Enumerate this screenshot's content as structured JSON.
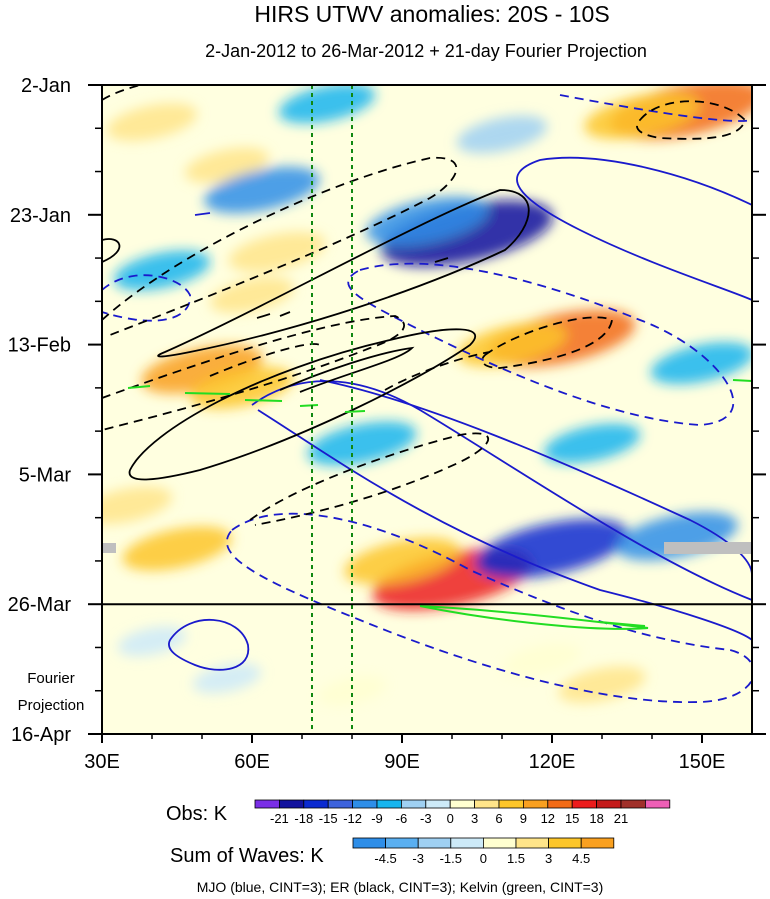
{
  "chart_data": {
    "type": "heatmap",
    "title": "HIRS UTWV anomalies: 20S - 10S",
    "subtitle": "2-Jan-2012 to 26-Mar-2012 + 21-day Fourier Projection",
    "xlabel": "",
    "ylabel": "",
    "x_ticks": [
      "30E",
      "60E",
      "90E",
      "120E",
      "150E"
    ],
    "x_tick_values": [
      30,
      60,
      90,
      120,
      150
    ],
    "xlim": [
      30,
      160
    ],
    "y_ticks": [
      "2-Jan",
      "23-Jan",
      "13-Feb",
      "5-Mar",
      "26-Mar",
      "16-Apr"
    ],
    "y_tick_days": [
      0,
      21,
      42,
      63,
      84,
      105
    ],
    "ylim_days": [
      0,
      105
    ],
    "observation_end_day": 84,
    "projection_label": [
      "Fourier",
      "Projection"
    ],
    "reference_longitudes": [
      72,
      80
    ],
    "obs_colorbar": {
      "label": "Obs: K",
      "levels": [
        "-21",
        "-18",
        "-15",
        "-12",
        "-9",
        "-6",
        "-3",
        "0",
        "3",
        "6",
        "9",
        "12",
        "15",
        "18",
        "21"
      ],
      "colors": [
        "#7a2ee6",
        "#12129e",
        "#0a2ad0",
        "#3d63dc",
        "#2e8ee8",
        "#16b5ee",
        "#9fd0f2",
        "#cdeaf8",
        "#ffffd0",
        "#ffe58a",
        "#fdc62a",
        "#f9a020",
        "#f26b16",
        "#ec1c1c",
        "#c41a1a",
        "#a0302a",
        "#ee5fb6"
      ]
    },
    "waves_colorbar": {
      "label": "Sum of Waves: K",
      "levels": [
        "-4.5",
        "-3",
        "-1.5",
        "0",
        "1.5",
        "3",
        "4.5"
      ],
      "colors": [
        "#2e8ee8",
        "#5aaff0",
        "#9fd0f2",
        "#cdeaf8",
        "#ffffd0",
        "#ffe58a",
        "#fdc62a",
        "#f9a020"
      ]
    },
    "legend_note": "MJO (blue, CINT=3); ER (black, CINT=3); Kelvin (green, CINT=3)",
    "series": [
      {
        "name": "MJO",
        "color": "#1a1acc",
        "cint": 3
      },
      {
        "name": "ER",
        "color": "#000000",
        "cint": 3
      },
      {
        "name": "Kelvin",
        "color": "#22dd22",
        "cint": 3
      }
    ],
    "anomaly_blobs": [
      {
        "lon": 147,
        "day": 4,
        "value": 15
      },
      {
        "lon": 138,
        "day": 5,
        "value": 9
      },
      {
        "lon": 122,
        "day": 41,
        "value": 14
      },
      {
        "lon": 112,
        "day": 42,
        "value": 8
      },
      {
        "lon": 100,
        "day": 80,
        "value": 16
      },
      {
        "lon": 90,
        "day": 77,
        "value": 9
      },
      {
        "lon": 50,
        "day": 46,
        "value": 10
      },
      {
        "lon": 58,
        "day": 49,
        "value": 7
      },
      {
        "lon": 65,
        "day": 27,
        "value": 6
      },
      {
        "lon": 45,
        "day": 75,
        "value": 8
      },
      {
        "lon": 35,
        "day": 68,
        "value": 5
      },
      {
        "lon": 40,
        "day": 6,
        "value": 5
      },
      {
        "lon": 55,
        "day": 13,
        "value": 4
      },
      {
        "lon": 60,
        "day": 34,
        "value": 4
      },
      {
        "lon": 130,
        "day": 97,
        "value": 4.5
      },
      {
        "lon": 118,
        "day": 93,
        "value": 3
      },
      {
        "lon": 80,
        "day": 98,
        "value": 1.5
      },
      {
        "lon": 103,
        "day": 24,
        "value": -18
      },
      {
        "lon": 95,
        "day": 22,
        "value": -10
      },
      {
        "lon": 120,
        "day": 75,
        "value": -15
      },
      {
        "lon": 145,
        "day": 73,
        "value": -10
      },
      {
        "lon": 62,
        "day": 17,
        "value": -9
      },
      {
        "lon": 82,
        "day": 58,
        "value": -8
      },
      {
        "lon": 150,
        "day": 45,
        "value": -7
      },
      {
        "lon": 75,
        "day": 3,
        "value": -6
      },
      {
        "lon": 42,
        "day": 30,
        "value": -6
      },
      {
        "lon": 110,
        "day": 8,
        "value": -5
      },
      {
        "lon": 128,
        "day": 58,
        "value": -6
      },
      {
        "lon": 55,
        "day": 96,
        "value": -1.5
      },
      {
        "lon": 40,
        "day": 90,
        "value": -1.5
      }
    ]
  }
}
